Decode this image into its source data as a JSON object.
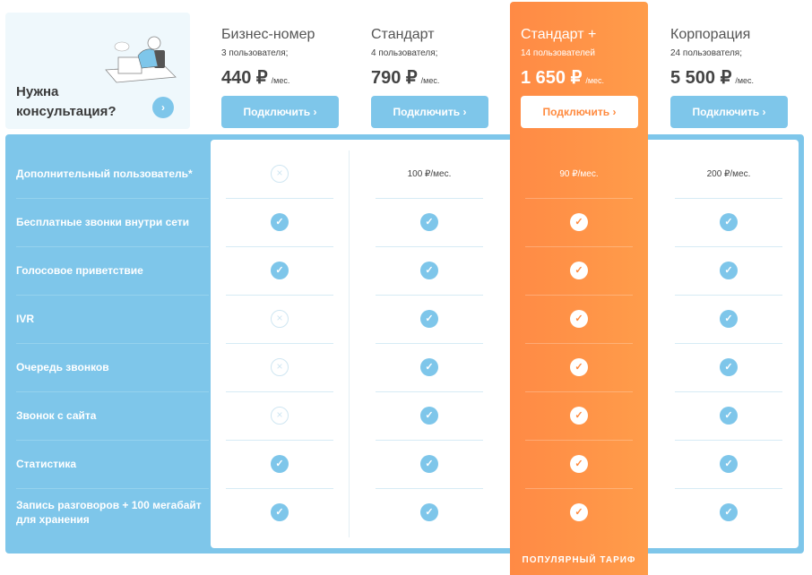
{
  "consult": {
    "title_line1": "Нужна",
    "title_line2": "консультация?",
    "button_icon": "chevron-right-icon"
  },
  "plans": [
    {
      "name": "Бизнес-номер",
      "users": "3 пользователя;",
      "price": "440 ₽",
      "period": "/мес.",
      "button": "Подключить  ›"
    },
    {
      "name": "Стандарт",
      "users": "4 пользователя;",
      "price": "790 ₽",
      "period": "/мес.",
      "button": "Подключить  ›"
    },
    {
      "name": "Стандарт +",
      "users": "14 пользователей",
      "price": "1 650 ₽",
      "period": "/мес.",
      "button": "Подключить  ›",
      "highlighted": true
    },
    {
      "name": "Корпорация",
      "users": "24 пользователя;",
      "price": "5 500 ₽",
      "period": "/мес.",
      "button": "Подключить  ›"
    }
  ],
  "features": [
    {
      "label": "Дополнительный пользователь*",
      "values": [
        "no",
        "100 ₽/мес.",
        "90 ₽/мес.",
        "200 ₽/мес."
      ]
    },
    {
      "label": "Бесплатные звонки внутри сети",
      "values": [
        "yes",
        "yes",
        "yes",
        "yes"
      ]
    },
    {
      "label": "Голосовое приветствие",
      "values": [
        "yes",
        "yes",
        "yes",
        "yes"
      ]
    },
    {
      "label": "IVR",
      "values": [
        "no",
        "yes",
        "yes",
        "yes"
      ]
    },
    {
      "label": "Очередь звонков",
      "values": [
        "no",
        "yes",
        "yes",
        "yes"
      ]
    },
    {
      "label": "Звонок с сайта",
      "values": [
        "no",
        "yes",
        "yes",
        "yes"
      ]
    },
    {
      "label": "Статистика",
      "values": [
        "yes",
        "yes",
        "yes",
        "yes"
      ]
    },
    {
      "label": "Запись разговоров + 100 мегабайт для хранения",
      "values": [
        "yes",
        "yes",
        "yes",
        "yes"
      ]
    }
  ],
  "popular_label": "ПОПУЛЯРНЫЙ ТАРИФ",
  "colors": {
    "accent_blue": "#7ec6ea",
    "accent_orange": "#ff8a45",
    "consult_bg": "#eff8fc"
  }
}
